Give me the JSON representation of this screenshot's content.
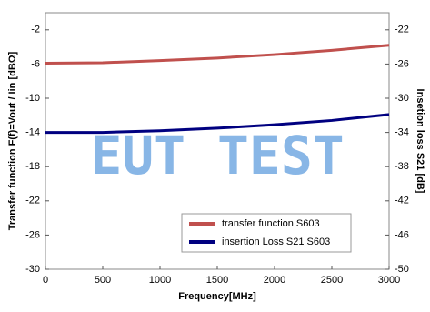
{
  "chart_data": {
    "type": "line",
    "x_label": "Frequency[MHz]",
    "y_label": "Transfer function F(f)=Vout / Iin [dBΩ]",
    "y2_label": "Insetion loss S21 [dB]",
    "annotation": "EUT TEST",
    "x": [
      0,
      500,
      1000,
      1500,
      2000,
      2500,
      3000
    ],
    "xlim": [
      0,
      3000
    ],
    "xticks": [
      0,
      500,
      1000,
      1500,
      2000,
      2500,
      3000
    ],
    "ylim": [
      -30,
      0
    ],
    "yticks": [
      -30,
      -26,
      -22,
      -18,
      -14,
      -10,
      -6,
      -2
    ],
    "y2lim": [
      -50,
      -20
    ],
    "y2ticks": [
      -50,
      -46,
      -42,
      -38,
      -34,
      -30,
      -26,
      -22
    ],
    "grid": false,
    "legend": "lower right",
    "series": [
      {
        "name": "transfer function S603",
        "color": "#c0504d",
        "values": [
          -5.9,
          -5.85,
          -5.6,
          -5.3,
          -4.9,
          -4.4,
          -3.8
        ]
      },
      {
        "name": "insertion Loss S21 S603",
        "color": "#000080",
        "axis": "y2",
        "values": [
          -34,
          -34,
          -33.8,
          -33.5,
          -33.1,
          -32.6,
          -31.9
        ]
      }
    ]
  }
}
